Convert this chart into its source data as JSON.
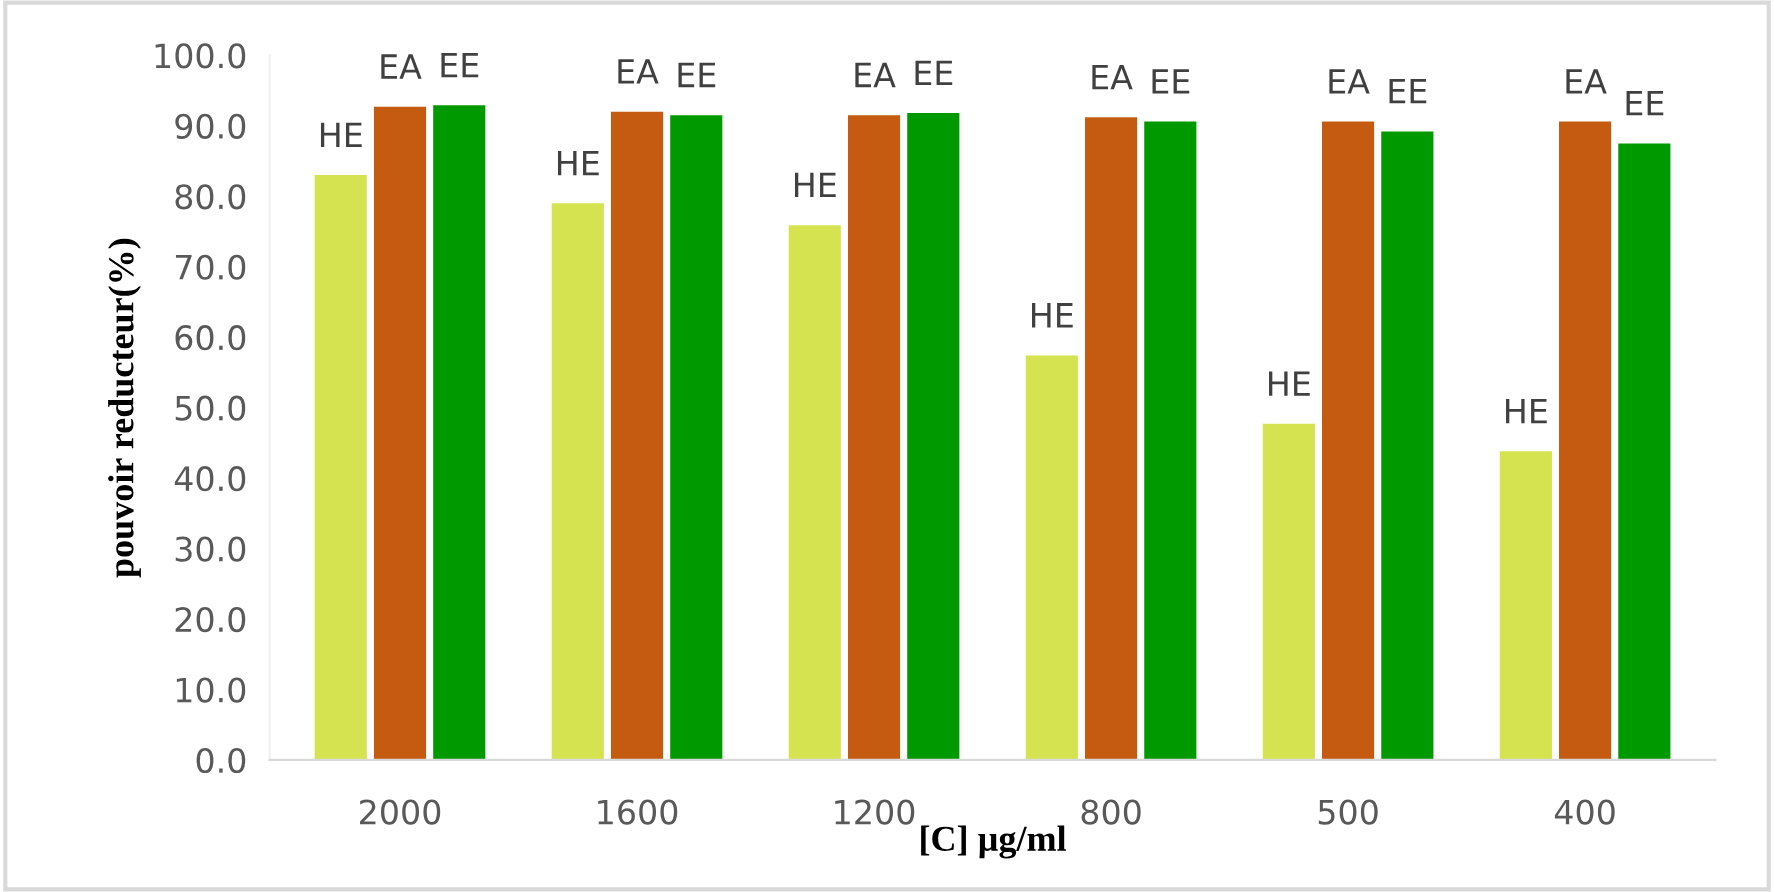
{
  "chart_data": {
    "type": "bar",
    "xlabel": "[C] µg/ml",
    "ylabel": "pouvoir reducteur(%)",
    "categories": [
      "2000",
      "1600",
      "1200",
      "800",
      "500",
      "400"
    ],
    "series": [
      {
        "name": "HE",
        "color": "#d4e34f",
        "values": [
          83.0,
          79.0,
          75.9,
          57.4,
          47.7,
          43.8
        ]
      },
      {
        "name": "EA",
        "color": "#c55a11",
        "values": [
          92.7,
          92.0,
          91.5,
          91.2,
          90.6,
          90.6
        ]
      },
      {
        "name": "EE",
        "color": "#009900",
        "values": [
          92.9,
          91.5,
          91.8,
          90.6,
          89.2,
          87.5
        ]
      }
    ],
    "ylim": [
      0,
      100
    ],
    "yticks": [
      {
        "value": 0,
        "label": "0.0"
      },
      {
        "value": 10,
        "label": "10.0"
      },
      {
        "value": 20,
        "label": "20.0"
      },
      {
        "value": 30,
        "label": "30.0"
      },
      {
        "value": 40,
        "label": "40.0"
      },
      {
        "value": 50,
        "label": "50.0"
      },
      {
        "value": 60,
        "label": "60.0"
      },
      {
        "value": 70,
        "label": "70.0"
      },
      {
        "value": 80,
        "label": "80.0"
      },
      {
        "value": 90,
        "label": "90.0"
      },
      {
        "value": 100,
        "label": "100.0"
      }
    ],
    "grid": false,
    "legend": false
  }
}
